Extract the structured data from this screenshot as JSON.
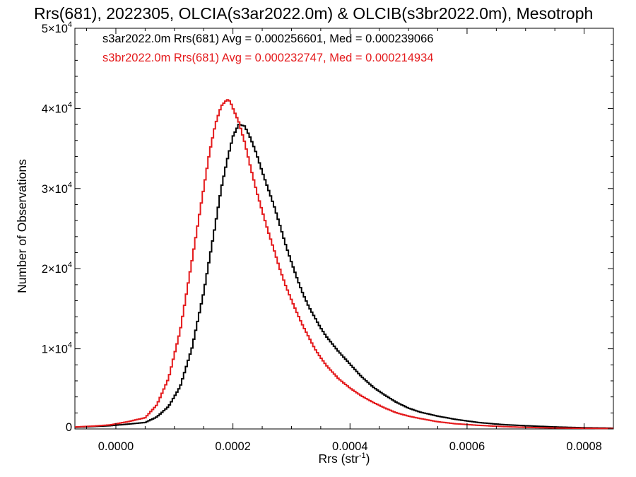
{
  "chart_data": {
    "type": "histogram-step",
    "title": "Rrs(681), 2022305, OLCIA(s3ar2022.0m) & OLCIB(s3br2022.0m), Mesotroph",
    "xlabel": {
      "text": "Rrs (str",
      "sup": "-1",
      "close": ")"
    },
    "ylabel": "Number of Observations",
    "xlim": [
      -7e-05,
      0.00085
    ],
    "ylim": [
      0,
      50000
    ],
    "x_ticks": [
      {
        "value": 0.0,
        "label": "0.0000"
      },
      {
        "value": 0.0002,
        "label": "0.0002"
      },
      {
        "value": 0.0004,
        "label": "0.0004"
      },
      {
        "value": 0.0006,
        "label": "0.0006"
      },
      {
        "value": 0.0008,
        "label": "0.0008"
      }
    ],
    "y_ticks": [
      {
        "value": 0,
        "base": "0",
        "exp": ""
      },
      {
        "value": 10000,
        "base": "1×10",
        "exp": "4"
      },
      {
        "value": 20000,
        "base": "2×10",
        "exp": "4"
      },
      {
        "value": 30000,
        "base": "3×10",
        "exp": "4"
      },
      {
        "value": 40000,
        "base": "4×10",
        "exp": "4"
      },
      {
        "value": 50000,
        "base": "5×10",
        "exp": "4"
      }
    ],
    "legend_position": "top-left",
    "series": [
      {
        "name": "s3ar2022.0m",
        "legend_text": "s3ar2022.0m Rrs(681) Avg = 0.000256601, Med = 0.000239066",
        "color": "#000000",
        "x": [
          -7e-05,
          -4e-05,
          -1e-05,
          2e-05,
          5e-05,
          7e-05,
          9e-05,
          0.00011,
          0.00013,
          0.00015,
          0.00017,
          0.00018,
          0.00019,
          0.0002,
          0.00021,
          0.00022,
          0.00023,
          0.00024,
          0.00025,
          0.00026,
          0.00027,
          0.00028,
          0.00029,
          0.0003,
          0.00031,
          0.00032,
          0.00033,
          0.00034,
          0.00035,
          0.00036,
          0.00037,
          0.00038,
          0.00039,
          0.0004,
          0.00042,
          0.00044,
          0.00046,
          0.00048,
          0.0005,
          0.00052,
          0.00055,
          0.00058,
          0.00062,
          0.00066,
          0.0007,
          0.00075,
          0.0008,
          0.00085
        ],
        "counts": [
          200,
          300,
          400,
          600,
          800,
          1500,
          2800,
          5300,
          10100,
          17000,
          25500,
          30000,
          33500,
          36500,
          38000,
          37800,
          36300,
          34400,
          32100,
          30000,
          27900,
          25500,
          23000,
          20800,
          18700,
          16800,
          15200,
          13900,
          12600,
          11500,
          10600,
          9700,
          8900,
          8100,
          6500,
          5200,
          4200,
          3300,
          2600,
          2100,
          1600,
          1200,
          800,
          550,
          400,
          250,
          150,
          100
        ]
      },
      {
        "name": "s3br2022.0m",
        "legend_text": "s3br2022.0m Rrs(681) Avg = 0.000232747, Med = 0.000214934",
        "color": "#e41a1c",
        "x": [
          -7e-05,
          -4e-05,
          -1e-05,
          2e-05,
          5e-05,
          7e-05,
          9e-05,
          0.00011,
          0.00013,
          0.00015,
          0.00016,
          0.00017,
          0.00018,
          0.00019,
          0.000195,
          0.0002,
          0.00021,
          0.00022,
          0.00023,
          0.00024,
          0.00025,
          0.00026,
          0.00027,
          0.00028,
          0.00029,
          0.0003,
          0.00031,
          0.00032,
          0.00033,
          0.00034,
          0.00035,
          0.00036,
          0.00037,
          0.00038,
          0.00039,
          0.0004,
          0.00042,
          0.00044,
          0.00046,
          0.00048,
          0.0005,
          0.00052,
          0.00055,
          0.00058,
          0.00062,
          0.00066,
          0.0007,
          0.00075,
          0.0008,
          0.00085
        ],
        "counts": [
          250,
          350,
          500,
          900,
          1400,
          3000,
          6300,
          12300,
          21000,
          30000,
          34500,
          38000,
          40300,
          41100,
          40900,
          40000,
          38300,
          35800,
          32700,
          29800,
          27200,
          24700,
          22400,
          20000,
          17900,
          16100,
          14400,
          12800,
          11400,
          10000,
          8900,
          7900,
          7100,
          6300,
          5700,
          5100,
          4100,
          3300,
          2600,
          2000,
          1600,
          1300,
          900,
          650,
          450,
          300,
          200,
          120,
          80,
          60
        ]
      }
    ]
  }
}
